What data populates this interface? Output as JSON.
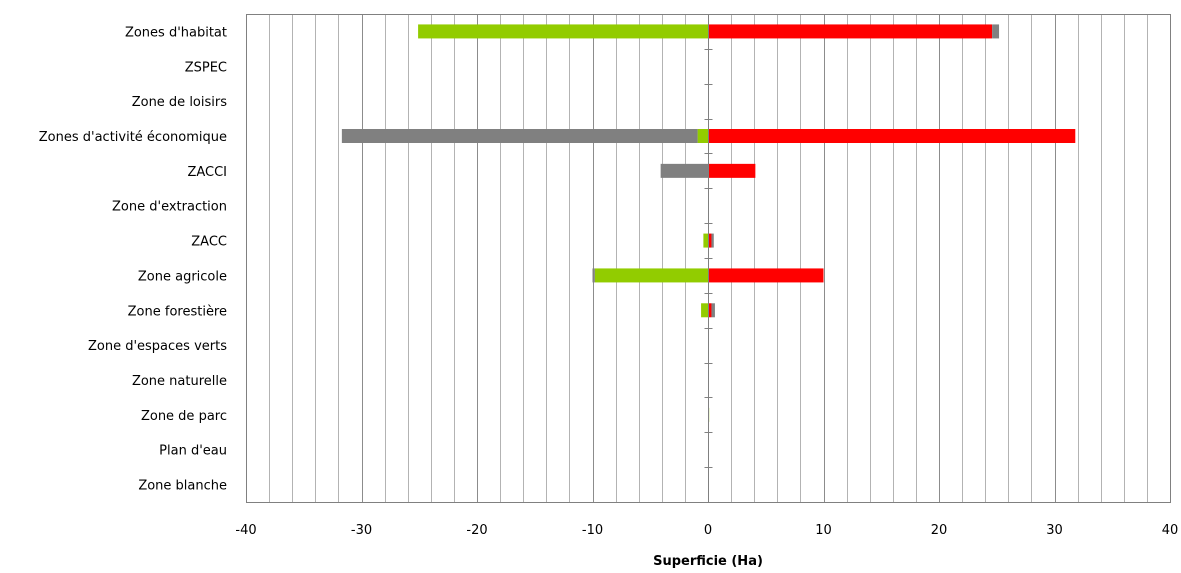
{
  "chart_data": {
    "type": "bar",
    "orientation": "horizontal",
    "stacked": true,
    "categories": [
      "Zones d'habitat",
      "ZSPEC",
      "Zone de loisirs",
      "Zones d'activité économique",
      "ZACCI",
      "Zone d'extraction",
      "ZACC",
      "Zone agricole",
      "Zone forestière",
      "Zone d'espaces verts",
      "Zone naturelle",
      "Zone de parc",
      "Plan d'eau",
      "Zone blanche"
    ],
    "series": [
      {
        "color": "#92cc00",
        "values": [
          -25.1,
          0,
          0,
          -0.9,
          0,
          0,
          -0.4,
          -9.8,
          -0.6,
          0,
          0,
          0.1,
          0,
          0
        ]
      },
      {
        "color": "#808080",
        "values": [
          0,
          0,
          0,
          -30.8,
          -4.1,
          0,
          0,
          -0.2,
          0,
          0,
          0,
          0,
          0,
          0
        ]
      },
      {
        "color": "#ff0000",
        "values": [
          24.6,
          0,
          0,
          31.8,
          4.1,
          0,
          0.3,
          10.0,
          0.3,
          0,
          0,
          0,
          0,
          0
        ]
      },
      {
        "color": "#808080",
        "values": [
          0.6,
          0,
          0,
          0,
          0,
          0,
          0.2,
          0,
          0.3,
          0,
          0,
          0,
          0,
          0
        ]
      }
    ],
    "xlim": [
      -40,
      40
    ],
    "x_ticks": [
      -40,
      -30,
      -20,
      -10,
      0,
      10,
      20,
      30,
      40
    ],
    "minor_gridline_step": 2,
    "grid": true,
    "xlabel": "Superficie (Ha)",
    "title": "",
    "legend": "none"
  }
}
